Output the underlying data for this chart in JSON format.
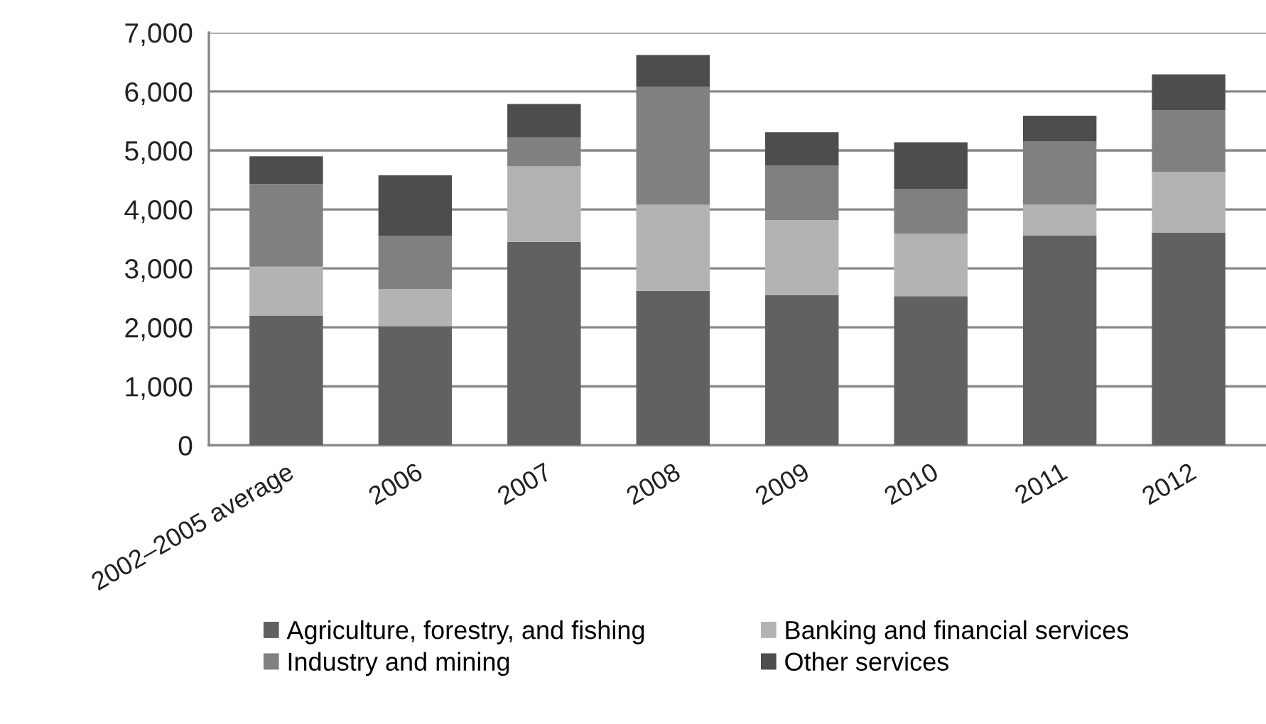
{
  "chart_data": {
    "type": "bar",
    "stacked": true,
    "categories": [
      "2002–2005 average",
      "2006",
      "2007",
      "2008",
      "2009",
      "2010",
      "2011",
      "2012"
    ],
    "series": [
      {
        "name": "Agriculture, forestry, and fishing",
        "color": "#616161",
        "values": [
          2200,
          2020,
          3450,
          2620,
          2550,
          2530,
          3560,
          3610
        ]
      },
      {
        "name": "Banking and financial services",
        "color": "#b3b3b3",
        "values": [
          830,
          630,
          1280,
          1460,
          1270,
          1060,
          520,
          1030
        ]
      },
      {
        "name": "Industry and mining",
        "color": "#808080",
        "values": [
          1400,
          900,
          490,
          2000,
          920,
          760,
          1070,
          1040
        ]
      },
      {
        "name": "Other services",
        "color": "#4d4d4d",
        "values": [
          470,
          1030,
          570,
          540,
          570,
          790,
          440,
          610
        ]
      }
    ],
    "ylim": [
      0,
      7000
    ],
    "yticks": [
      {
        "value": 0,
        "label": "0"
      },
      {
        "value": 1000,
        "label": "1,000"
      },
      {
        "value": 2000,
        "label": "2,000"
      },
      {
        "value": 3000,
        "label": "3,000"
      },
      {
        "value": 4000,
        "label": "4,000"
      },
      {
        "value": 5000,
        "label": "5,000"
      },
      {
        "value": 6000,
        "label": "6,000"
      },
      {
        "value": 7000,
        "label": "7,000"
      }
    ],
    "grid": "y",
    "legend": "bottom"
  }
}
